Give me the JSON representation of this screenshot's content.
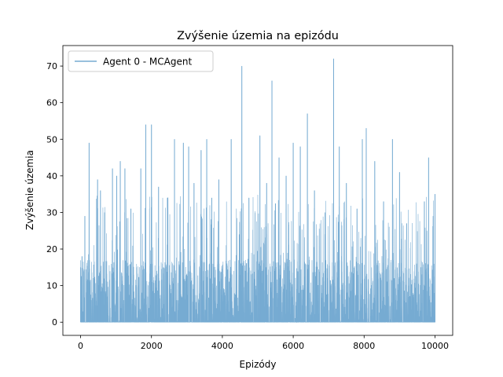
{
  "chart_data": {
    "type": "line",
    "title": "Zvýšenie územia na epizódu",
    "xlabel": "Epizódy",
    "ylabel": "Zvýšenie územia",
    "xlim": [
      -500,
      10500
    ],
    "ylim": [
      -3.6,
      75.6
    ],
    "xticks": [
      0,
      2000,
      4000,
      6000,
      8000,
      10000
    ],
    "yticks": [
      0,
      10,
      20,
      30,
      40,
      50,
      60,
      70
    ],
    "grid": false,
    "legend_position": "top-left",
    "series": [
      {
        "name": "Agent 0 - MCAgent",
        "color": "#76abd2",
        "x_range": [
          0,
          10000
        ],
        "baseline_min": 0,
        "typical_max": 17,
        "peaks": [
          {
            "x": 0,
            "y": 15
          },
          {
            "x": 40,
            "y": 18
          },
          {
            "x": 120,
            "y": 29
          },
          {
            "x": 240,
            "y": 49
          },
          {
            "x": 480,
            "y": 39
          },
          {
            "x": 560,
            "y": 36
          },
          {
            "x": 680,
            "y": 30
          },
          {
            "x": 900,
            "y": 42
          },
          {
            "x": 1020,
            "y": 40
          },
          {
            "x": 1120,
            "y": 44
          },
          {
            "x": 1250,
            "y": 42
          },
          {
            "x": 1420,
            "y": 31
          },
          {
            "x": 1700,
            "y": 42
          },
          {
            "x": 1840,
            "y": 54
          },
          {
            "x": 2000,
            "y": 54
          },
          {
            "x": 2200,
            "y": 37
          },
          {
            "x": 2450,
            "y": 34
          },
          {
            "x": 2650,
            "y": 50
          },
          {
            "x": 2900,
            "y": 49
          },
          {
            "x": 3050,
            "y": 48
          },
          {
            "x": 3200,
            "y": 38
          },
          {
            "x": 3400,
            "y": 47
          },
          {
            "x": 3560,
            "y": 50
          },
          {
            "x": 3700,
            "y": 34
          },
          {
            "x": 3900,
            "y": 39
          },
          {
            "x": 4250,
            "y": 50
          },
          {
            "x": 4550,
            "y": 70
          },
          {
            "x": 4750,
            "y": 34
          },
          {
            "x": 5060,
            "y": 51
          },
          {
            "x": 5250,
            "y": 38
          },
          {
            "x": 5400,
            "y": 66
          },
          {
            "x": 5600,
            "y": 45
          },
          {
            "x": 5800,
            "y": 40
          },
          {
            "x": 6000,
            "y": 49
          },
          {
            "x": 6200,
            "y": 48
          },
          {
            "x": 6400,
            "y": 57
          },
          {
            "x": 6600,
            "y": 36
          },
          {
            "x": 6900,
            "y": 30
          },
          {
            "x": 7140,
            "y": 72
          },
          {
            "x": 7300,
            "y": 48
          },
          {
            "x": 7500,
            "y": 38
          },
          {
            "x": 7800,
            "y": 31
          },
          {
            "x": 7950,
            "y": 50
          },
          {
            "x": 8060,
            "y": 53
          },
          {
            "x": 8300,
            "y": 44
          },
          {
            "x": 8550,
            "y": 33
          },
          {
            "x": 8800,
            "y": 50
          },
          {
            "x": 9000,
            "y": 41
          },
          {
            "x": 9200,
            "y": 27
          },
          {
            "x": 9700,
            "y": 33
          },
          {
            "x": 9820,
            "y": 45
          },
          {
            "x": 9950,
            "y": 29
          },
          {
            "x": 10000,
            "y": 35
          }
        ]
      }
    ]
  }
}
